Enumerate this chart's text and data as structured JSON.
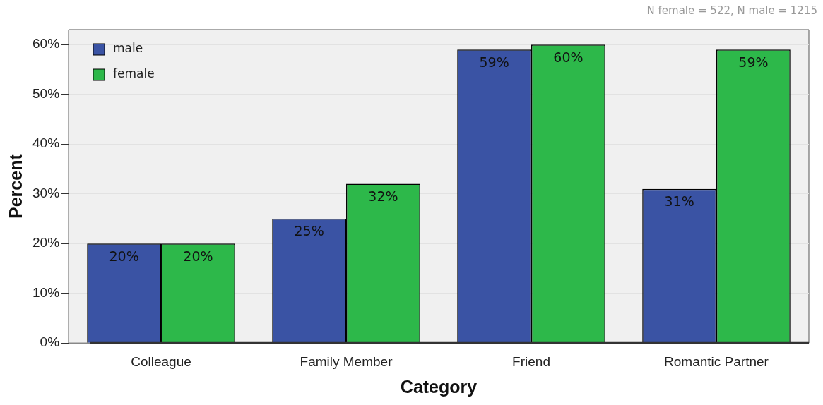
{
  "chart_data": {
    "type": "bar",
    "xlabel": "Category",
    "ylabel": "Percent",
    "categories": [
      "Colleague",
      "Family Member",
      "Friend",
      "Romantic Partner"
    ],
    "series": [
      {
        "name": "male",
        "color": "#3a53a4",
        "values": [
          20,
          25,
          59,
          31
        ],
        "value_labels": [
          "20%",
          "25%",
          "59%",
          "31%"
        ]
      },
      {
        "name": "female",
        "color": "#2db84a",
        "values": [
          20,
          32,
          60,
          59
        ],
        "value_labels": [
          "20%",
          "32%",
          "60%",
          "59%"
        ]
      }
    ],
    "ylim": [
      0,
      63
    ],
    "yticks": [
      {
        "value": 0,
        "label": "0%"
      },
      {
        "value": 10,
        "label": "10%"
      },
      {
        "value": 20,
        "label": "20%"
      },
      {
        "value": 30,
        "label": "30%"
      },
      {
        "value": 40,
        "label": "40%"
      },
      {
        "value": 50,
        "label": "50%"
      },
      {
        "value": 60,
        "label": "60%"
      }
    ],
    "grid": "y",
    "legend": "top left",
    "annotations": [
      "N female = 522, N male = 1215"
    ]
  }
}
